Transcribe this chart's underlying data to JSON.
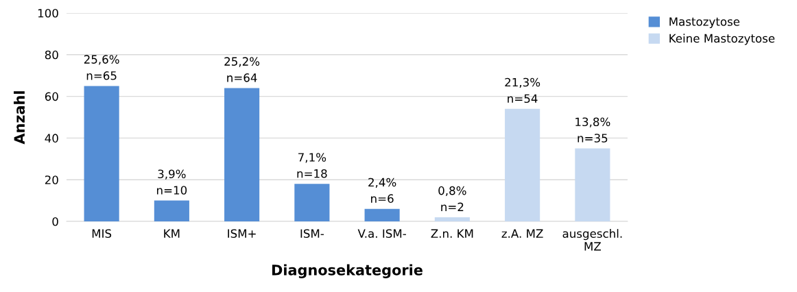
{
  "chart_data": {
    "type": "bar",
    "xlabel": "Diagnosekategorie",
    "ylabel": "Anzahl",
    "categories": [
      "MIS",
      "KM",
      "ISM+",
      "ISM-",
      "V.a. ISM-",
      "Z.n. KM",
      "z.A. MZ",
      "ausgeschl.\nMZ"
    ],
    "series": [
      {
        "name": "Mastozytose",
        "color": "#558ed5",
        "values": [
          65,
          10,
          64,
          18,
          6,
          null,
          null,
          null
        ],
        "value_labels": [
          "25,6%\nn=65",
          "3,9%\nn=10",
          "25,2%\nn=64",
          "7,1%\nn=18",
          "2,4%\nn=6",
          null,
          null,
          null
        ]
      },
      {
        "name": "Keine Mastozytose",
        "color": "#c6d9f1",
        "values": [
          null,
          null,
          null,
          null,
          null,
          2,
          54,
          35
        ],
        "value_labels": [
          null,
          null,
          null,
          null,
          null,
          "0,8%\nn=2",
          "21,3%\nn=54",
          "13,8%\nn=35"
        ]
      }
    ],
    "ylim": [
      0,
      100
    ],
    "yticks": [
      0,
      20,
      40,
      60,
      80,
      100
    ],
    "grid": "y",
    "legend": "top right"
  }
}
